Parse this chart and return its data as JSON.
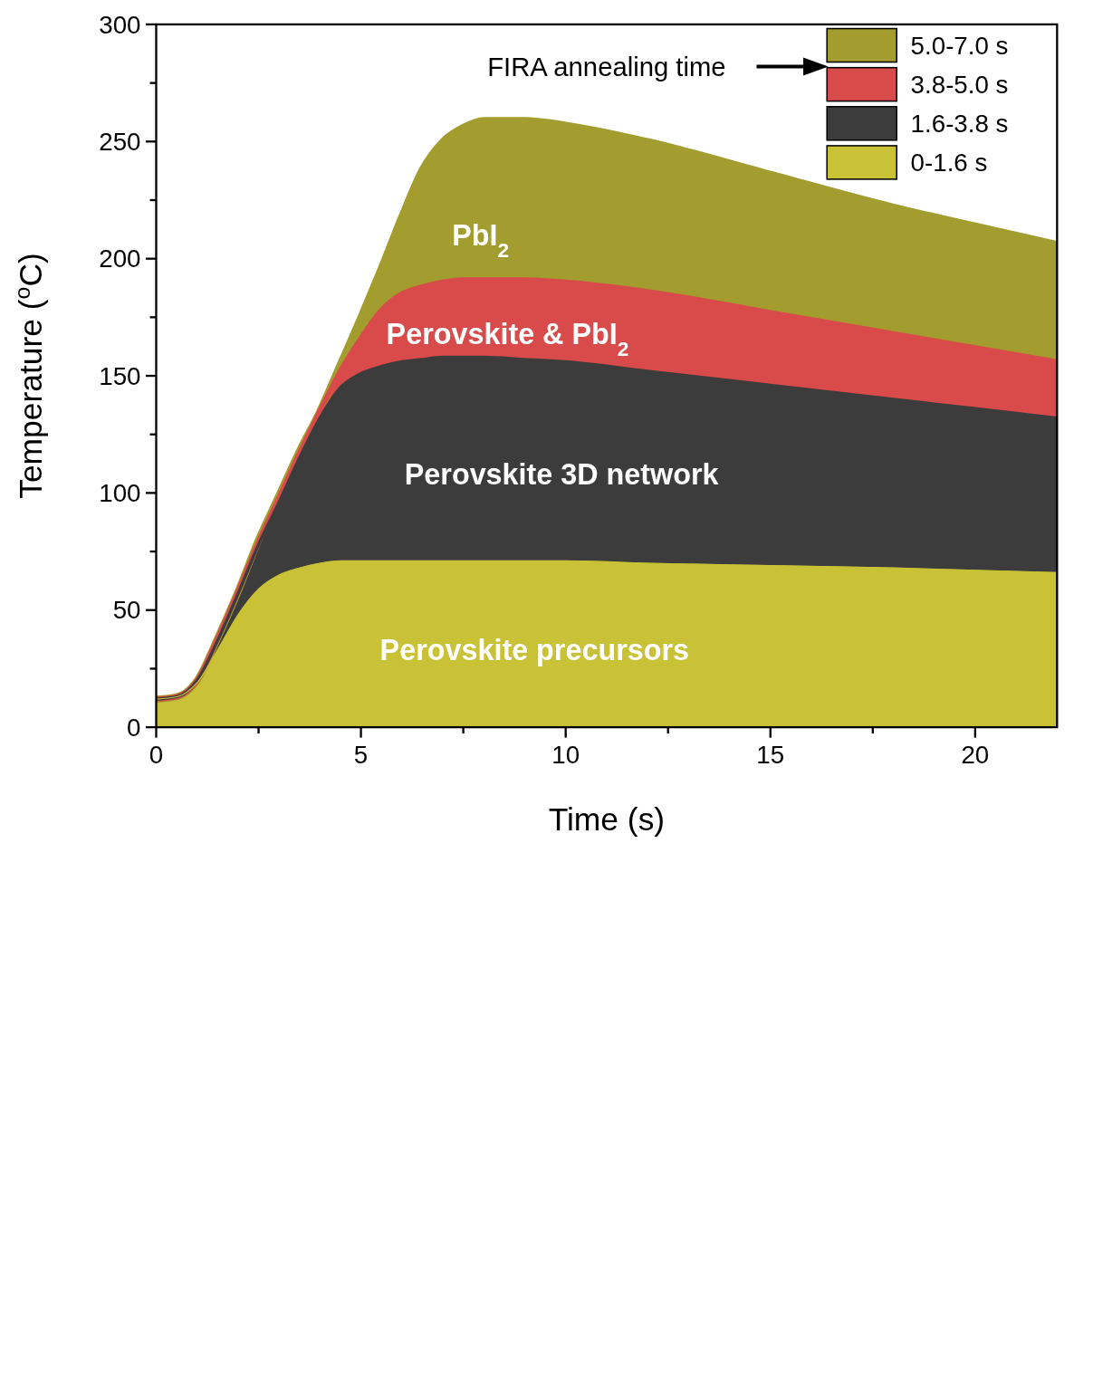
{
  "chart_data": {
    "type": "area",
    "xlabel": "Time (s)",
    "ylabel": "Temperature ($^{o}$C)",
    "x": [
      0,
      0.5,
      1,
      1.5,
      2,
      2.5,
      3,
      3.5,
      4,
      4.5,
      5,
      5.5,
      6,
      6.5,
      7,
      7.5,
      8,
      9,
      10,
      12,
      15,
      18,
      20,
      22
    ],
    "series": [
      {
        "name": "5.0-7.0 s",
        "color": "#a39c2e",
        "values": [
          12,
          13,
          20,
          38,
          58,
          80,
          99,
          118,
          135,
          155,
          175,
          196,
          218,
          238,
          250,
          256,
          259,
          259,
          257,
          250,
          236,
          222,
          214,
          206
        ]
      },
      {
        "name": "3.8-5.0 s",
        "color": "#d94a4a",
        "values": [
          12,
          13,
          20,
          38,
          58,
          79,
          98,
          117,
          135,
          152,
          166,
          178,
          185,
          188,
          190,
          191,
          191,
          191,
          190,
          186,
          177,
          168,
          162,
          156
        ]
      },
      {
        "name": "1.6-3.8 s",
        "color": "#3c3c3c",
        "values": [
          12,
          13,
          20,
          37,
          57,
          78,
          96,
          115,
          132,
          145,
          151,
          154,
          156,
          157,
          158,
          158,
          158,
          157,
          156,
          152,
          146,
          140,
          136,
          132
        ]
      },
      {
        "name": "0-1.6 s",
        "color": "#c9c236",
        "values": [
          12,
          13,
          19,
          33,
          48,
          59,
          65,
          68,
          70,
          71,
          71,
          71,
          71,
          71,
          71,
          71,
          71,
          71,
          71,
          70,
          69,
          68,
          67,
          66
        ]
      }
    ],
    "xlim": [
      0,
      22
    ],
    "xticks": [
      0,
      {
        "value": 2.5,
        "label": null
      },
      5,
      {
        "value": 7.5,
        "label": null
      },
      10,
      {
        "value": 12.5,
        "label": null
      },
      15,
      {
        "value": 17.5,
        "label": null
      },
      20
    ],
    "ylim": [
      0,
      300
    ],
    "yticks": [
      0,
      {
        "value": 25,
        "label": null
      },
      50,
      {
        "value": 75,
        "label": null
      },
      100,
      {
        "value": 125,
        "label": null
      },
      150,
      {
        "value": 175,
        "label": null
      },
      200,
      {
        "value": 225,
        "label": null
      },
      250,
      {
        "value": 275,
        "label": null
      },
      300
    ],
    "grid": false,
    "legend": "top right",
    "annotations": [
      "FIRA annealing time",
      "PbI$_{2}$",
      "Perovskite  & PbI$_{2}$",
      "Perovskite 3D network",
      "Perovskite precursors"
    ]
  }
}
